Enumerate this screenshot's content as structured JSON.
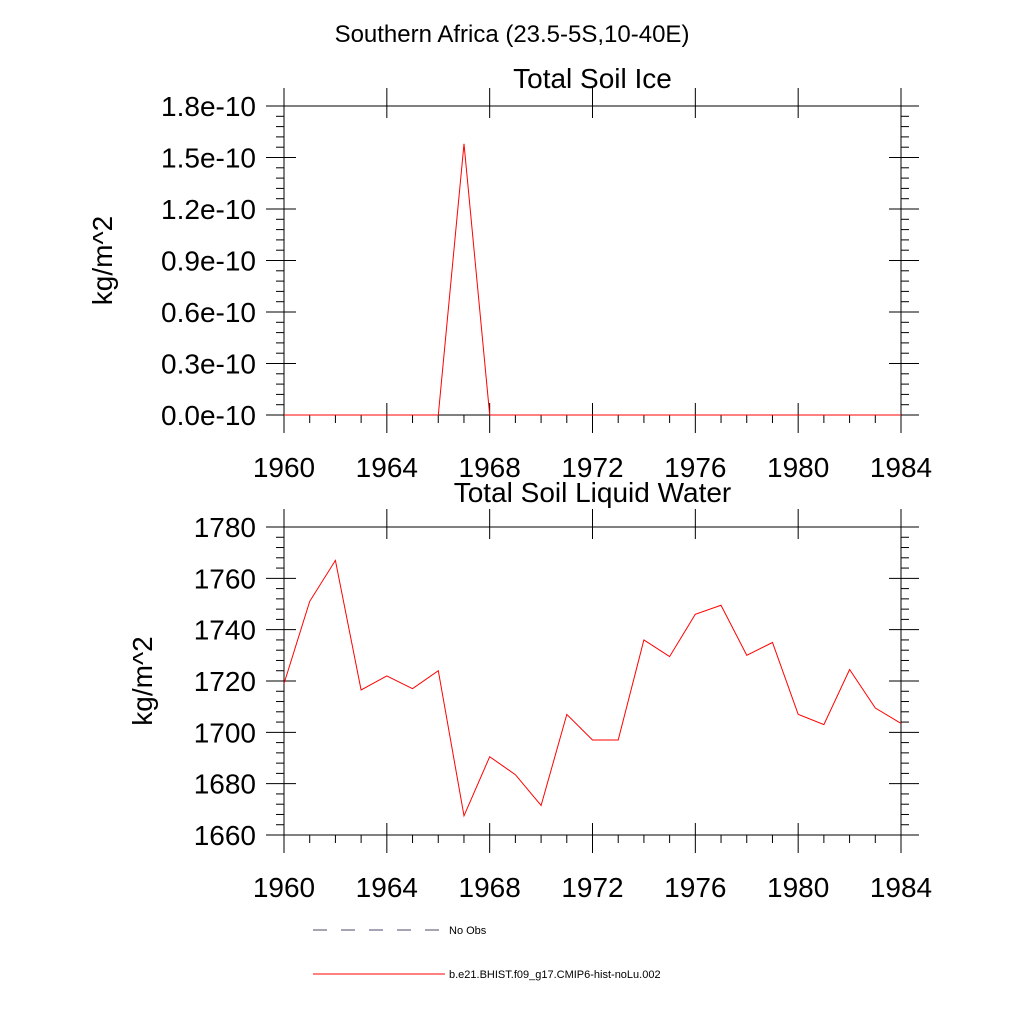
{
  "figure": {
    "main_title": "Southern Africa (23.5-5S,10-40E)"
  },
  "legend": {
    "entries": [
      {
        "label": "No Obs",
        "style": "dashed",
        "color": "#4a4a6a"
      },
      {
        "label": "b.e21.BHIST.f09_g17.CMIP6-hist-noLu.002",
        "style": "solid",
        "color": "#ff0000"
      }
    ]
  },
  "chart_data": [
    {
      "type": "line",
      "title": "Total Soil Ice",
      "ylabel": "kg/m^2",
      "xlabel": "",
      "xlim": [
        1960,
        1984
      ],
      "ylim": [
        0,
        1.8e-10
      ],
      "x_ticks": [
        1960,
        1964,
        1968,
        1972,
        1976,
        1980,
        1984
      ],
      "x_tick_labels": [
        "1960",
        "1964",
        "1968",
        "1972",
        "1976",
        "1980",
        "1984"
      ],
      "y_ticks": [
        0,
        3e-11,
        6e-11,
        9e-11,
        1.2e-10,
        1.5e-10,
        1.8e-10
      ],
      "y_tick_labels": [
        "0.0e-10",
        "0.3e-10",
        "0.6e-10",
        "0.9e-10",
        "1.2e-10",
        "1.5e-10",
        "1.8e-10"
      ],
      "grid": false,
      "series": [
        {
          "color": "#ff0000",
          "x": [
            1960,
            1961,
            1962,
            1963,
            1964,
            1965,
            1966,
            1967,
            1968,
            1969,
            1970,
            1971,
            1972,
            1973,
            1974,
            1975,
            1976,
            1977,
            1978,
            1979,
            1980,
            1981,
            1982,
            1983,
            1984
          ],
          "values": [
            0,
            0,
            0,
            0,
            0,
            0,
            0,
            1.58e-10,
            0,
            0,
            0,
            0,
            0,
            0,
            0,
            0,
            0,
            0,
            0,
            0,
            0,
            0,
            0,
            0,
            0
          ]
        }
      ]
    },
    {
      "type": "line",
      "title": "Total Soil Liquid Water",
      "ylabel": "kg/m^2",
      "xlabel": "",
      "xlim": [
        1960,
        1984
      ],
      "ylim": [
        1660,
        1780
      ],
      "x_ticks": [
        1960,
        1964,
        1968,
        1972,
        1976,
        1980,
        1984
      ],
      "x_tick_labels": [
        "1960",
        "1964",
        "1968",
        "1972",
        "1976",
        "1980",
        "1984"
      ],
      "y_ticks": [
        1660,
        1680,
        1700,
        1720,
        1740,
        1760,
        1780
      ],
      "y_tick_labels": [
        "1660",
        "1680",
        "1700",
        "1720",
        "1740",
        "1760",
        "1780"
      ],
      "grid": false,
      "series": [
        {
          "color": "#ff0000",
          "x": [
            1960,
            1961,
            1962,
            1963,
            1964,
            1965,
            1966,
            1967,
            1968,
            1969,
            1970,
            1971,
            1972,
            1973,
            1974,
            1975,
            1976,
            1977,
            1978,
            1979,
            1980,
            1981,
            1982,
            1983,
            1984
          ],
          "values": [
            1719,
            1751,
            1767,
            1716.5,
            1722,
            1717,
            1724,
            1667.5,
            1690.5,
            1683.5,
            1671.5,
            1707,
            1697,
            1697,
            1736,
            1729.5,
            1746,
            1749.5,
            1730,
            1735,
            1707,
            1703,
            1724.5,
            1709.5,
            1703.5
          ]
        }
      ]
    }
  ]
}
